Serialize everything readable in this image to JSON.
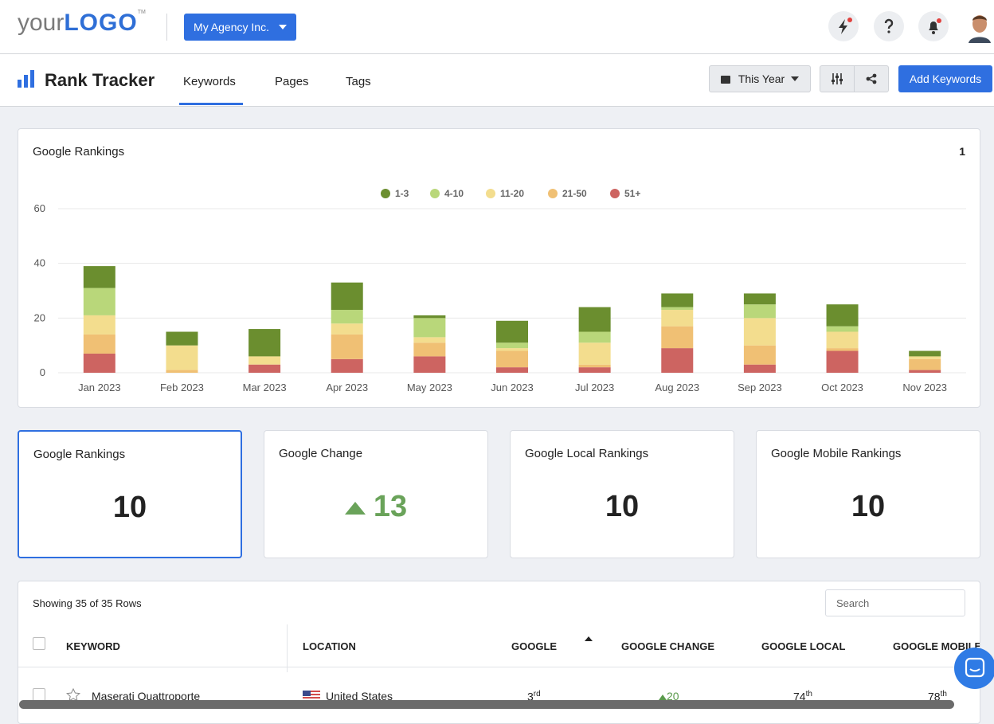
{
  "header": {
    "logo_your": "your",
    "logo_logo": "LOGO",
    "logo_tm": "TM",
    "agency": "My Agency Inc."
  },
  "nav": {
    "title": "Rank Tracker",
    "tabs": [
      "Keywords",
      "Pages",
      "Tags"
    ],
    "date_range": "This Year",
    "add_button": "Add Keywords"
  },
  "chart_card": {
    "counter": "1"
  },
  "chart_data": {
    "type": "stacked-bar",
    "title": "Google Rankings",
    "categories": [
      "Jan 2023",
      "Feb 2023",
      "Mar 2023",
      "Apr 2023",
      "May 2023",
      "Jun 2023",
      "Jul 2023",
      "Aug 2023",
      "Sep 2023",
      "Oct 2023",
      "Nov 2023"
    ],
    "series": [
      {
        "name": "51+",
        "color": "#cd6461",
        "values": [
          7,
          0,
          3,
          5,
          6,
          2,
          2,
          9,
          3,
          8,
          1
        ]
      },
      {
        "name": "21-50",
        "color": "#f0c074",
        "values": [
          7,
          1,
          0,
          9,
          5,
          6,
          1,
          8,
          7,
          1,
          4
        ]
      },
      {
        "name": "11-20",
        "color": "#f3dd8e",
        "values": [
          7,
          9,
          3,
          4,
          2,
          1,
          8,
          6,
          10,
          6,
          1
        ]
      },
      {
        "name": "4-10",
        "color": "#b9d77a",
        "values": [
          10,
          0,
          0,
          5,
          7,
          2,
          4,
          1,
          5,
          2,
          0
        ]
      },
      {
        "name": "1-3",
        "color": "#6b8e2f",
        "values": [
          8,
          5,
          10,
          10,
          1,
          8,
          9,
          5,
          4,
          8,
          2
        ]
      }
    ],
    "ylim": [
      0,
      60
    ],
    "yticks": [
      0,
      20,
      40,
      60
    ],
    "grid": true,
    "legend": "top"
  },
  "kpis": [
    {
      "label": "Google Rankings",
      "value": "10"
    },
    {
      "label": "Google Change",
      "value": "13"
    },
    {
      "label": "Google Local Rankings",
      "value": "10"
    },
    {
      "label": "Google Mobile Rankings",
      "value": "10"
    }
  ],
  "table": {
    "summary": "Showing 35 of 35 Rows",
    "search_placeholder": "Search",
    "columns": [
      "KEYWORD",
      "LOCATION",
      "GOOGLE",
      "GOOGLE CHANGE",
      "GOOGLE LOCAL",
      "GOOGLE MOBILE"
    ],
    "rows": [
      {
        "keyword": "Maserati Quattroporte",
        "location": "United States",
        "google": "3",
        "google_suffix": "rd",
        "change": "20",
        "local": "74",
        "local_suffix": "th",
        "mobile": "78",
        "mobile_suffix": "th"
      }
    ]
  }
}
